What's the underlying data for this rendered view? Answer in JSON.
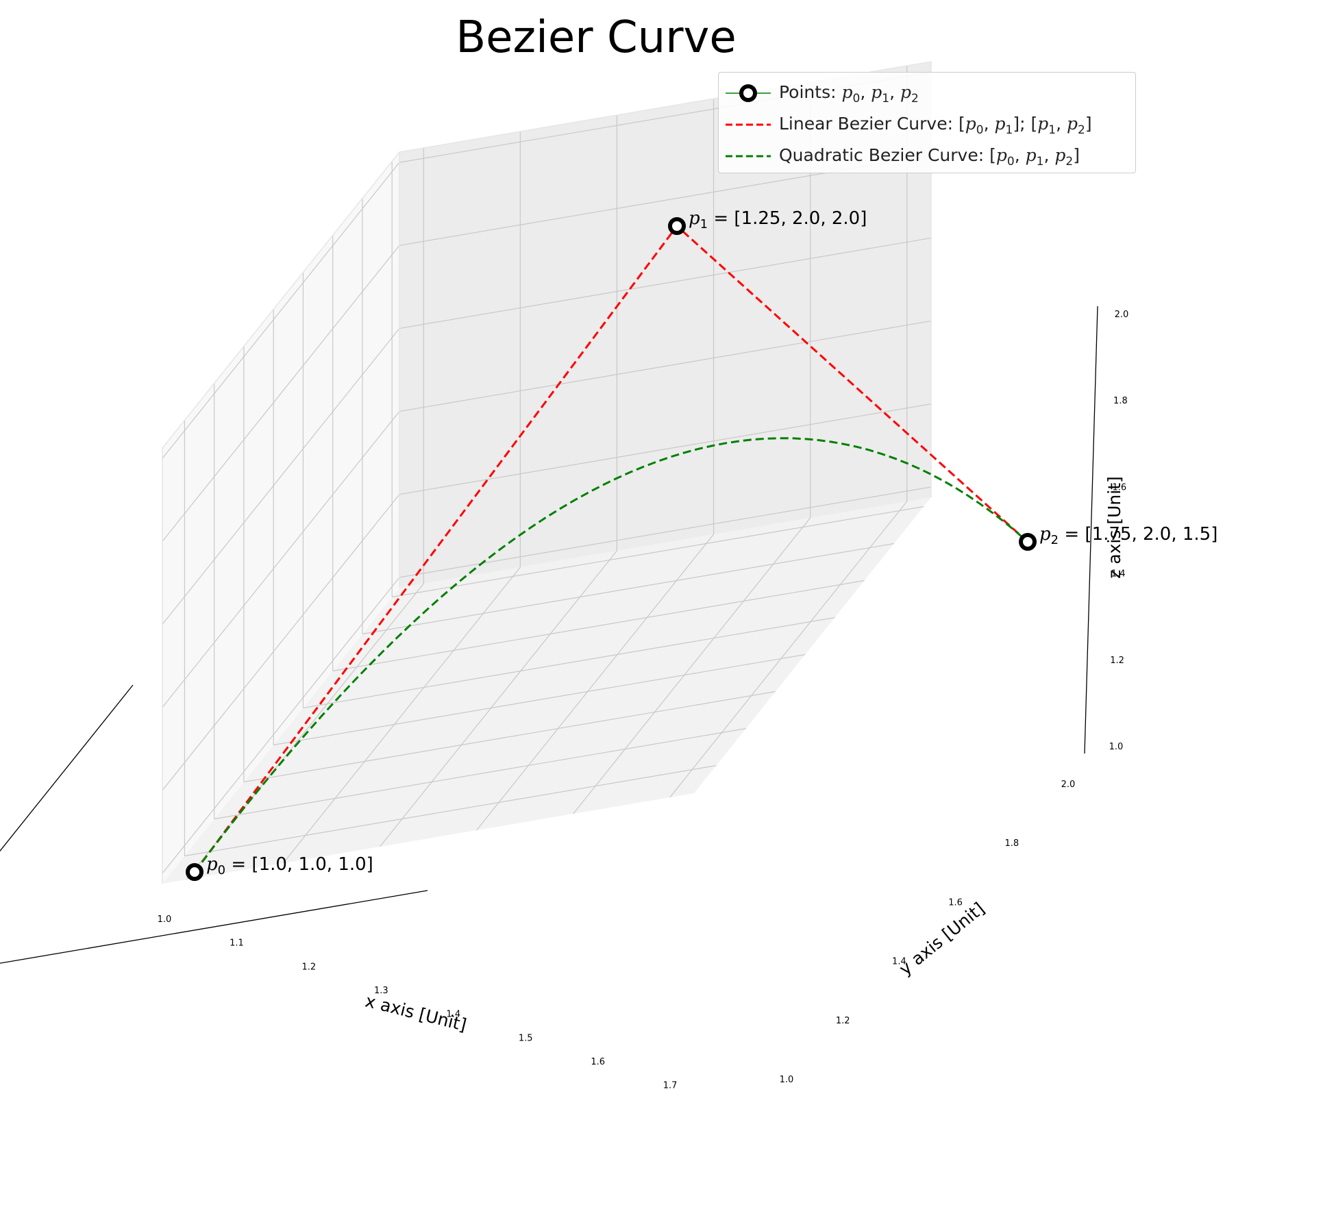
{
  "chart_data": {
    "type": "line",
    "projection": "3d",
    "title": "Bezier Curve",
    "xlabel": "x axis [Unit]",
    "ylabel": "y axis [Unit]",
    "zlabel": "z axis [Unit]",
    "xlim": [
      0.975,
      1.775
    ],
    "ylim": [
      0.95,
      2.05
    ],
    "zlim": [
      0.975,
      2.025
    ],
    "x_ticks": [
      "1.0",
      "1.1",
      "1.2",
      "1.3",
      "1.4",
      "1.5",
      "1.6",
      "1.7"
    ],
    "y_ticks": [
      "1.0",
      "1.2",
      "1.4",
      "1.6",
      "1.8",
      "2.0"
    ],
    "z_ticks": [
      "1.0",
      "1.2",
      "1.4",
      "1.6",
      "1.8",
      "2.0"
    ],
    "grid": true,
    "legend_position": "top-right",
    "points": [
      {
        "name": "p0",
        "x": 1.0,
        "y": 1.0,
        "z": 1.0,
        "label": "= [1.0, 1.0, 1.0]"
      },
      {
        "name": "p1",
        "x": 1.25,
        "y": 2.0,
        "z": 2.0,
        "label": "= [1.25, 2.0, 2.0]"
      },
      {
        "name": "p2",
        "x": 1.75,
        "y": 2.0,
        "z": 1.5,
        "label": "= [1.75, 2.0, 1.5]"
      }
    ],
    "series": [
      {
        "name": "Points: p0, p1, p2",
        "kind": "markers",
        "color": "#000000",
        "line_color": "#008000"
      },
      {
        "name": "Linear Bezier Curve: [p0, p1]; [p1, p2]",
        "kind": "dashed-line",
        "color": "#ff0000"
      },
      {
        "name": "Quadratic Bezier Curve: [p0, p1, p2]",
        "kind": "dashed-curve",
        "color": "#008000"
      }
    ]
  }
}
